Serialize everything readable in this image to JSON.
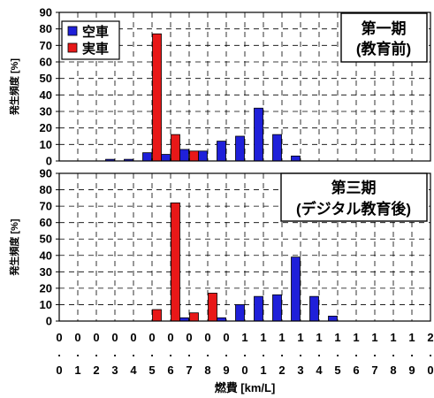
{
  "colors": {
    "empty": "#1f20d9",
    "actual": "#e81818",
    "grid": "#000000"
  },
  "chart_data": {
    "type": "bar",
    "shared_x_ticks": {
      "top": [
        "0",
        "0",
        "0",
        "0",
        "0",
        "0",
        "0",
        "0",
        "0",
        "0",
        "1",
        "1",
        "1",
        "1",
        "1",
        "1",
        "1",
        "1",
        "1",
        "1",
        "2"
      ],
      "mid": [
        ".",
        ".",
        ".",
        ".",
        ".",
        ".",
        ".",
        ".",
        ".",
        ".",
        ".",
        ".",
        ".",
        ".",
        ".",
        ".",
        ".",
        ".",
        ".",
        ".",
        "."
      ],
      "bottom": [
        "0",
        "1",
        "2",
        "3",
        "4",
        "5",
        "6",
        "7",
        "8",
        "9",
        "0",
        "1",
        "2",
        "3",
        "4",
        "5",
        "6",
        "7",
        "8",
        "9",
        "0"
      ]
    },
    "xlabel": "燃費 [km/L]",
    "legend": [
      "空車",
      "実車"
    ],
    "charts": [
      {
        "title_lines": [
          "第一期",
          "(教育前)"
        ],
        "ylabel": "発生頻度 [%]",
        "ylim": [
          0,
          90
        ],
        "yticks": [
          "0",
          "10",
          "20",
          "30",
          "40",
          "50",
          "60",
          "70",
          "80",
          "90"
        ],
        "grid": true,
        "series": [
          {
            "name": "空車",
            "values": [
              0,
              0,
              1,
              1,
              5,
              4,
              7,
              6,
              12,
              15,
              32,
              16,
              3,
              0,
              0,
              0,
              0,
              0,
              0,
              0
            ]
          },
          {
            "name": "実車",
            "values": [
              0,
              0,
              0,
              0,
              0,
              77,
              16,
              6,
              0,
              0,
              0,
              0,
              0,
              0,
              0,
              0,
              0,
              0,
              0,
              0
            ]
          }
        ]
      },
      {
        "title_lines": [
          "第三期",
          "(デジタル教育後)"
        ],
        "ylabel": "発生頻度 [%]",
        "ylim": [
          0,
          90
        ],
        "yticks": [
          "0",
          "10",
          "20",
          "30",
          "40",
          "50",
          "60",
          "70",
          "80",
          "90"
        ],
        "grid": true,
        "series": [
          {
            "name": "空車",
            "values": [
              0,
              0,
              0,
              0,
              0,
              0,
              2,
              0,
              2,
              10,
              15,
              16,
              39,
              15,
              3,
              0,
              0,
              0,
              0,
              0
            ]
          },
          {
            "name": "実車",
            "values": [
              0,
              0,
              0,
              0,
              0,
              7,
              72,
              5,
              17,
              0,
              0,
              0,
              0,
              0,
              0,
              0,
              0,
              0,
              0,
              0
            ]
          }
        ]
      }
    ]
  }
}
